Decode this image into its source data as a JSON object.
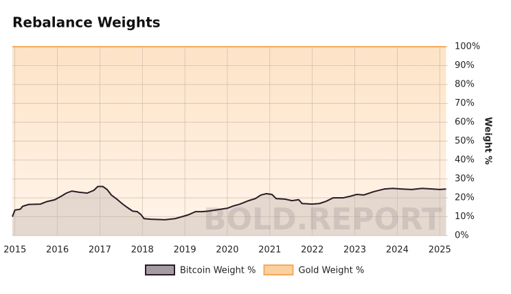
{
  "chart_data": {
    "type": "stacked-area",
    "title": "Rebalance Weights",
    "y_axis_label": "Weight %",
    "watermark": "BOLD.REPORT",
    "x": [
      2014.94,
      2015.0,
      2015.13,
      2015.18,
      2015.32,
      2015.6,
      2015.75,
      2015.94,
      2016.1,
      2016.21,
      2016.34,
      2016.5,
      2016.7,
      2016.86,
      2016.95,
      2017.07,
      2017.17,
      2017.27,
      2017.4,
      2017.52,
      2017.64,
      2017.77,
      2017.88,
      2017.96,
      2018.04,
      2018.2,
      2018.53,
      2018.77,
      2018.93,
      2019.08,
      2019.25,
      2019.4,
      2019.56,
      2019.8,
      2020.0,
      2020.13,
      2020.3,
      2020.5,
      2020.66,
      2020.79,
      2020.92,
      2021.05,
      2021.15,
      2021.36,
      2021.52,
      2021.68,
      2021.76,
      2022.0,
      2022.17,
      2022.33,
      2022.49,
      2022.73,
      2022.92,
      2023.05,
      2023.21,
      2023.45,
      2023.7,
      2023.89,
      2024.1,
      2024.34,
      2024.58,
      2024.83,
      2025.0,
      2025.15
    ],
    "series": [
      {
        "name": "Bitcoin Weight %",
        "color": "#2a1a24",
        "fill": "#e4d8cf",
        "swatch": "#a59ba2",
        "values": [
          10,
          13.5,
          14,
          15.5,
          16.5,
          16.7,
          18,
          19,
          21,
          22.5,
          23.6,
          23,
          22.5,
          24,
          26,
          26,
          24.4,
          21.5,
          19.3,
          17,
          15,
          13,
          12.7,
          11.3,
          9,
          8.7,
          8.4,
          9,
          10,
          11,
          12.7,
          12.7,
          13,
          13.8,
          14.5,
          15.6,
          16.7,
          18.5,
          19.6,
          21.5,
          22.2,
          21.8,
          19.6,
          19.3,
          18.5,
          19,
          17,
          16.7,
          17,
          18.2,
          20,
          20,
          21,
          21.8,
          21.5,
          23.3,
          24.7,
          25,
          24.7,
          24.4,
          25,
          24.7,
          24.4,
          24.7
        ]
      },
      {
        "name": "Gold Weight %",
        "color": "#f3a95a",
        "fill": "#fde9d3",
        "swatch": "#fcd09e",
        "values": [
          90,
          86.5,
          86,
          84.5,
          83.5,
          83.3,
          82,
          81,
          79,
          77.5,
          76.4,
          77,
          77.5,
          76,
          74,
          74,
          75.6,
          78.5,
          80.7,
          83,
          85,
          87,
          87.3,
          88.7,
          91,
          91.3,
          91.6,
          91,
          90,
          89,
          87.3,
          87.3,
          87,
          86.2,
          85.5,
          84.4,
          83.3,
          81.5,
          80.4,
          78.5,
          77.8,
          78.2,
          80.4,
          80.7,
          81.5,
          81,
          83,
          83.3,
          83,
          81.8,
          80,
          80,
          79,
          78.2,
          78.5,
          76.7,
          75.3,
          75,
          75.3,
          75.6,
          75,
          75.3,
          75.6,
          75.3
        ]
      }
    ],
    "xlim": [
      2014.94,
      2025.19
    ],
    "xticks": [
      2015,
      2016,
      2017,
      2018,
      2019,
      2020,
      2021,
      2022,
      2023,
      2024,
      2025
    ],
    "ylim": [
      0,
      100
    ],
    "yticks": [
      {
        "value": 0,
        "label": "0%"
      },
      {
        "value": 10,
        "label": "10%"
      },
      {
        "value": 20,
        "label": "20%"
      },
      {
        "value": 30,
        "label": "30%"
      },
      {
        "value": 40,
        "label": "40%"
      },
      {
        "value": 50,
        "label": "50%"
      },
      {
        "value": 60,
        "label": "60%"
      },
      {
        "value": 70,
        "label": "70%"
      },
      {
        "value": 80,
        "label": "80%"
      },
      {
        "value": 90,
        "label": "90%"
      },
      {
        "value": 100,
        "label": "100%"
      }
    ],
    "grid": true
  }
}
